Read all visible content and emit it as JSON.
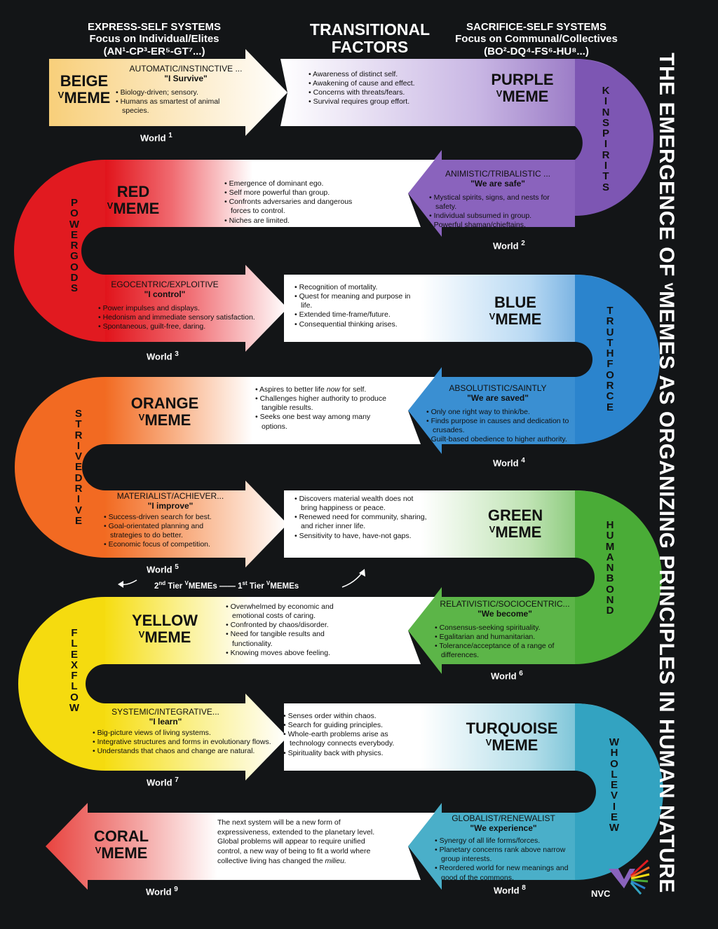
{
  "header": {
    "left": {
      "line1": "EXPRESS-SELF SYSTEMS",
      "line2": "Focus on Individual/Elites",
      "line3": "(AN¹-CP³-ER⁵-GT⁷...)"
    },
    "center": {
      "line1": "TRANSITIONAL",
      "line2": "FACTORS"
    },
    "right": {
      "line1": "SACRIFICE-SELF SYSTEMS",
      "line2": "Focus on Communal/Collectives",
      "line3": "(BO²-DQ⁴-FS⁶-HU⁸...)"
    }
  },
  "side_title": "THE EMERGENCE OF ᵛMEMES AS ORGANIZING PRINCIPLES IN HUMAN NATURE",
  "vmeme_suffix": "MEME",
  "vmark": "V",
  "world_label": "World",
  "tier_label": {
    "a": "2",
    "a_sup": "nd",
    "b": " Tier ",
    "c": "V",
    "d": "MEMEs —— 1",
    "e_sup": "st",
    "f": " Tier ",
    "g": "V",
    "h": "MEMEs"
  },
  "logo_text": "NVC",
  "memes": [
    {
      "name": "BEIGE",
      "world": "1",
      "level": "AUTOMATIC/INSTINCTIVE ...",
      "motto": "\"I Survive\"",
      "bullets": [
        "Biology-driven; sensory.",
        "Humans as smartest of animal species."
      ],
      "transition": [
        "Awareness of distinct self.",
        "Awakening of cause and effect.",
        "Concerns with threats/fears.",
        "Survival requires group effort."
      ]
    },
    {
      "name": "PURPLE",
      "world": "2",
      "spine": "KINSPIRITS",
      "level": "ANIMISTIC/TRIBALISTIC ...",
      "motto": "\"We are safe\"",
      "bullets": [
        "Mystical spirits, signs, and nests for safety.",
        "Individual subsumed in group.",
        "Powerful shaman/chieftains."
      ],
      "transition": [
        "Emergence of dominant ego.",
        "Self more powerful than group.",
        "Confronts adversaries and dangerous forces to control.",
        "Niches are limited."
      ]
    },
    {
      "name": "RED",
      "world": "3",
      "spine": "POWERGODS",
      "level": "EGOCENTRIC/EXPLOITIVE",
      "motto": "\"I control\"",
      "bullets": [
        "Power impulses and displays.",
        "Hedonism and immediate sensory satisfaction.",
        "Spontaneous, guilt-free, daring."
      ],
      "transition": [
        "Recognition of mortality.",
        "Quest for meaning and purpose in life.",
        "Extended time-frame/future.",
        "Consequential thinking arises."
      ]
    },
    {
      "name": "BLUE",
      "world": "4",
      "spine": "TRUTHFORCE",
      "level": "ABSOLUTISTIC/SAINTLY",
      "motto": "\"We are saved\"",
      "bullets": [
        "Only one right way to think/be.",
        "Finds purpose in causes and dedication to crusades.",
        "Guilt-based obedience to higher authority."
      ],
      "transition_pre": "Aspires to better life ",
      "transition_em": "now",
      "transition_post": " for self.",
      "transition": [
        "Challenges higher authority to produce tangible results.",
        "Seeks one best way among many options."
      ]
    },
    {
      "name": "ORANGE",
      "world": "5",
      "spine": "STRIVEDRIVE",
      "level": "MATERIALIST/ACHIEVER...",
      "motto": "\"I improve\"",
      "bullets": [
        "Success-driven search for best.",
        "Goal-orientated planning and strategies to do better.",
        "Economic focus of competition."
      ],
      "transition": [
        "Discovers material wealth does not bring happiness or peace.",
        "Renewed need for community, sharing, and richer inner life.",
        "Sensitivity to have, have-not gaps."
      ]
    },
    {
      "name": "GREEN",
      "world": "6",
      "spine": "HUMANBOND",
      "level": "RELATIVISTIC/SOCIOCENTRIC...",
      "motto": "\"We become\"",
      "bullets": [
        "Consensus-seeking spirituality.",
        "Egalitarian and humanitarian.",
        "Tolerance/acceptance of a range of differences."
      ],
      "transition": [
        "Overwhelmed by economic and emotional costs of caring.",
        "Confronted by chaos/disorder.",
        "Need for tangible results and functionality.",
        "Knowing moves above feeling."
      ]
    },
    {
      "name": "YELLOW",
      "world": "7",
      "spine": "FLEXFLOW",
      "level": "SYSTEMIC/INTEGRATIVE...",
      "motto": "\"I learn\"",
      "bullets": [
        "Big-picture views of living systems.",
        "Integrative structures and forms in evolutionary flows.",
        "Understands that chaos and change are natural."
      ],
      "transition": [
        "Senses order within chaos.",
        "Search for guiding principles.",
        "Whole-earth problems arise as technology connects everybody.",
        "Spirituality back with physics."
      ]
    },
    {
      "name": "TURQUOISE",
      "world": "8",
      "spine": "WHOLEVIEW",
      "level": "GLOBALIST/RENEWALIST",
      "motto": "\"We experience\"",
      "bullets": [
        "Synergy of all life forms/forces.",
        "Planetary concerns rank above narrow group interests.",
        "Reordered world for new meanings and good of the commons."
      ],
      "paragraph": "The next system will be a new form of expressiveness, extended to the planetary level. Global problems will appear to require unified control, a new way of being to fit a world where collective living has changed the ",
      "paragraph_em": "milieu."
    },
    {
      "name": "CORAL",
      "world": "9"
    }
  ],
  "colors": {
    "beige": "#f7d27d",
    "purple": "#8560b7",
    "red": "#e41f25",
    "blue": "#2d86ce",
    "orange": "#f2702a",
    "green": "#4fae3a",
    "yellow": "#f6e322",
    "turquoise": "#39a7c4",
    "coral": "#ea5a55"
  }
}
